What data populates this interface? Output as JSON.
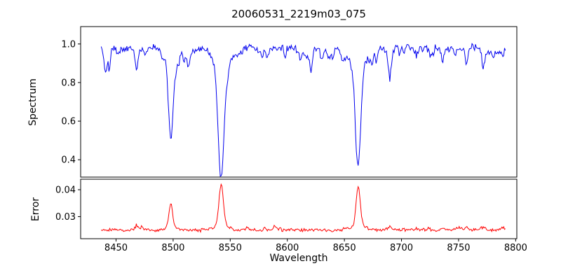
{
  "chart_data": {
    "type": "line",
    "title": "20060531_2219m03_075",
    "xlabel": "Wavelength",
    "xlim": [
      8419,
      8801
    ],
    "x_ticks": [
      8450,
      8500,
      8550,
      8600,
      8650,
      8700,
      8750,
      8800
    ],
    "x_tick_labels": [
      "8450",
      "8500",
      "8550",
      "8600",
      "8650",
      "8700",
      "8750",
      "8800"
    ],
    "series_x_range": [
      8437,
      8791
    ],
    "sample_step": 0.75,
    "random_seed": 42,
    "grid": false,
    "legend": false,
    "panels": [
      {
        "name": "spectrum",
        "ylabel": "Spectrum",
        "line_color": "#0000ee",
        "ylim": [
          0.31,
          1.09
        ],
        "y_ticks": [
          0.4,
          0.6,
          0.8,
          1.0
        ],
        "y_tick_labels": [
          "0.4",
          "0.6",
          "0.8",
          "1.0"
        ],
        "base_level": 0.985,
        "noise_amplitude": 0.016,
        "features_sign": -1,
        "random_feature_count": 90,
        "random_feature_max": 0.07,
        "features": [
          {
            "center": 8441,
            "amplitude": 0.1,
            "sigma": 1.0
          },
          {
            "center": 8444,
            "amplitude": 0.09,
            "sigma": 0.9
          },
          {
            "center": 8452,
            "amplitude": 0.05,
            "sigma": 0.8
          },
          {
            "center": 8468,
            "amplitude": 0.125,
            "sigma": 1.1
          },
          {
            "center": 8476,
            "amplitude": 0.05,
            "sigma": 0.8
          },
          {
            "center": 8498.0,
            "amplitude": 0.475,
            "sigma": 1.9
          },
          {
            "center": 8505,
            "amplitude": 0.05,
            "sigma": 0.8
          },
          {
            "center": 8513,
            "amplitude": 0.085,
            "sigma": 1.0
          },
          {
            "center": 8542.1,
            "amplitude": 0.64,
            "sigma": 2.5
          },
          {
            "center": 8548,
            "amplitude": 0.05,
            "sigma": 0.9
          },
          {
            "center": 8560,
            "amplitude": 0.04,
            "sigma": 0.8
          },
          {
            "center": 8582,
            "amplitude": 0.05,
            "sigma": 0.9
          },
          {
            "center": 8598,
            "amplitude": 0.06,
            "sigma": 0.9
          },
          {
            "center": 8611,
            "amplitude": 0.04,
            "sigma": 0.8
          },
          {
            "center": 8621,
            "amplitude": 0.05,
            "sigma": 0.8
          },
          {
            "center": 8640,
            "amplitude": 0.05,
            "sigma": 0.8
          },
          {
            "center": 8648,
            "amplitude": 0.06,
            "sigma": 0.9
          },
          {
            "center": 8662.1,
            "amplitude": 0.595,
            "sigma": 2.3
          },
          {
            "center": 8674,
            "amplitude": 0.06,
            "sigma": 0.9
          },
          {
            "center": 8690,
            "amplitude": 0.115,
            "sigma": 1.2
          },
          {
            "center": 8713,
            "amplitude": 0.05,
            "sigma": 0.9
          },
          {
            "center": 8736,
            "amplitude": 0.075,
            "sigma": 1.0
          },
          {
            "center": 8747,
            "amplitude": 0.05,
            "sigma": 0.8
          },
          {
            "center": 8757,
            "amplitude": 0.08,
            "sigma": 1.0
          },
          {
            "center": 8772,
            "amplitude": 0.09,
            "sigma": 1.0
          },
          {
            "center": 8780,
            "amplitude": 0.06,
            "sigma": 0.9
          }
        ]
      },
      {
        "name": "error",
        "ylabel": "Error",
        "line_color": "#ff0000",
        "ylim": [
          0.0218,
          0.0439
        ],
        "y_ticks": [
          0.03,
          0.04
        ],
        "y_tick_labels": [
          "0.03",
          "0.04"
        ],
        "base_level": 0.025,
        "noise_amplitude": 0.0005,
        "features_sign": 1,
        "random_feature_count": 45,
        "random_feature_max": 0.0014,
        "features": [
          {
            "center": 8468,
            "amplitude": 0.0018,
            "sigma": 1.1
          },
          {
            "center": 8498.0,
            "amplitude": 0.0098,
            "sigma": 1.5
          },
          {
            "center": 8542.1,
            "amplitude": 0.017,
            "sigma": 1.8
          },
          {
            "center": 8662.1,
            "amplitude": 0.0163,
            "sigma": 1.7
          },
          {
            "center": 8690,
            "amplitude": 0.0015,
            "sigma": 1.2
          },
          {
            "center": 8736,
            "amplitude": 0.001,
            "sigma": 1.0
          },
          {
            "center": 8757,
            "amplitude": 0.0012,
            "sigma": 1.0
          },
          {
            "center": 8772,
            "amplitude": 0.0013,
            "sigma": 1.0
          }
        ]
      }
    ]
  }
}
